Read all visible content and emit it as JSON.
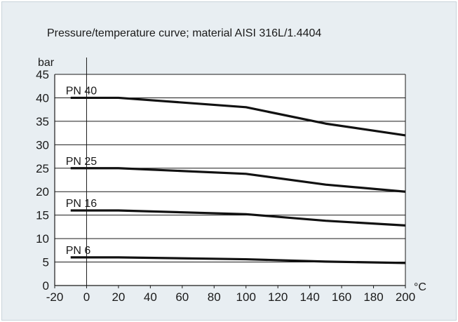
{
  "chart_data": {
    "type": "line",
    "title": "Pressure/temperature curve; material AISI 316L/1.4404",
    "ylabel": "bar",
    "xlabel": "°C",
    "xlim": [
      -20,
      200
    ],
    "ylim": [
      0,
      45
    ],
    "x_ticks": [
      -20,
      0,
      20,
      40,
      60,
      80,
      100,
      120,
      140,
      160,
      180,
      200
    ],
    "y_ticks": [
      0,
      5,
      10,
      15,
      20,
      25,
      30,
      35,
      40,
      45
    ],
    "grid": "horizontal",
    "series": [
      {
        "name": "PN 40",
        "x": [
          -10,
          20,
          100,
          150,
          200
        ],
        "y": [
          40,
          40,
          38,
          34.5,
          32
        ]
      },
      {
        "name": "PN 25",
        "x": [
          -10,
          20,
          100,
          150,
          200
        ],
        "y": [
          25,
          25,
          23.8,
          21.5,
          20
        ]
      },
      {
        "name": "PN 16",
        "x": [
          -10,
          20,
          100,
          150,
          200
        ],
        "y": [
          16,
          16,
          15.2,
          13.8,
          12.8
        ]
      },
      {
        "name": "PN 6",
        "x": [
          -10,
          20,
          100,
          150,
          200
        ],
        "y": [
          6,
          6,
          5.6,
          5.1,
          4.8
        ]
      }
    ]
  }
}
